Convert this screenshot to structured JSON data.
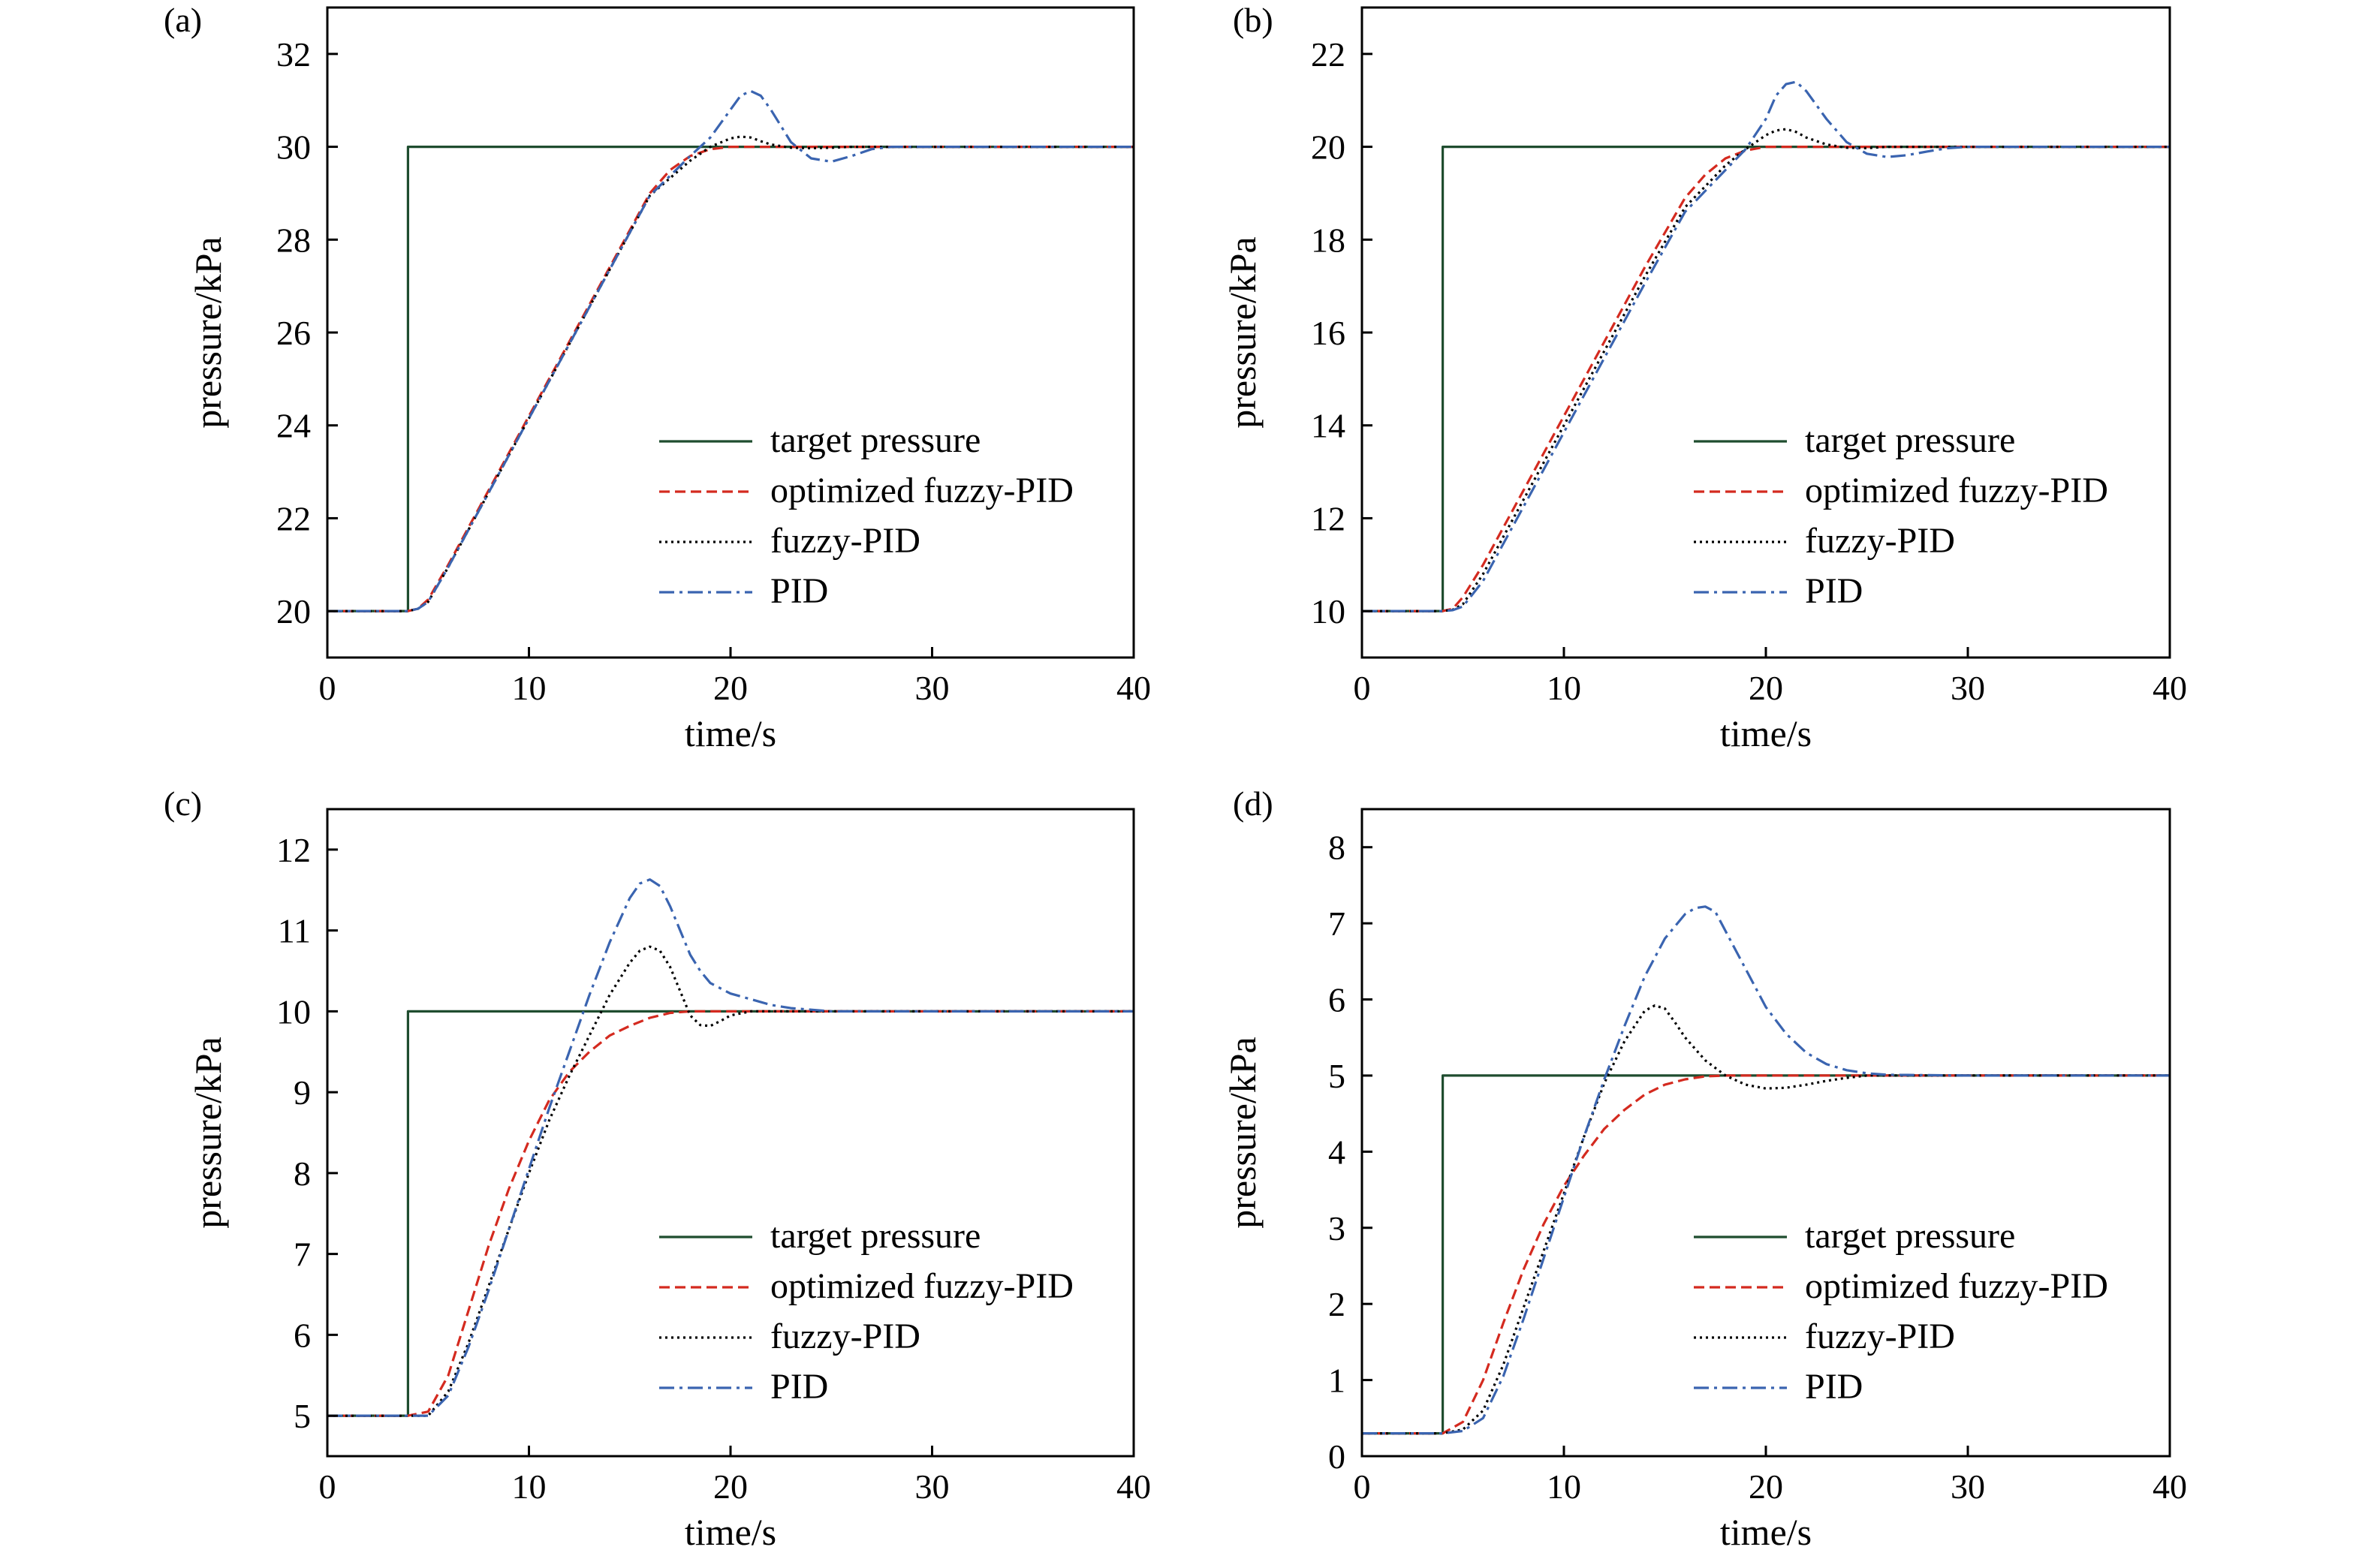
{
  "colors": {
    "target": "#1f4d2f",
    "optimized": "#d42a1f",
    "fuzzy": "#000000",
    "pid": "#3a64b0"
  },
  "legend_order": [
    "target",
    "optimized",
    "fuzzy",
    "pid"
  ],
  "chart_data": [
    {
      "type": "line",
      "panel_label": "(a)",
      "xlabel": "time/s",
      "ylabel": "pressure/kPa",
      "xlim": [
        0,
        40
      ],
      "ylim": [
        19,
        33
      ],
      "xticks": [
        0,
        10,
        20,
        30,
        40
      ],
      "yticks": [
        20,
        22,
        24,
        26,
        28,
        30,
        32
      ],
      "legend_position": "lower-right",
      "series": [
        {
          "key": "target",
          "name": "target pressure",
          "style": "solid",
          "x": [
            0,
            4,
            4,
            40
          ],
          "y": [
            20,
            20,
            30,
            30
          ]
        },
        {
          "key": "optimized",
          "name": "optimized fuzzy-PID",
          "style": "dashed",
          "x": [
            0,
            4,
            4.5,
            5,
            6,
            8,
            10,
            12,
            14,
            16,
            17,
            18,
            19,
            20,
            21,
            22,
            25,
            30,
            40
          ],
          "y": [
            20,
            20,
            20.05,
            20.25,
            21,
            22.6,
            24.2,
            25.8,
            27.4,
            29.0,
            29.5,
            29.8,
            29.95,
            30,
            30,
            30,
            30,
            30,
            30
          ]
        },
        {
          "key": "fuzzy",
          "name": "fuzzy-PID",
          "style": "dotted",
          "x": [
            0,
            4,
            4.5,
            5,
            6,
            8,
            10,
            12,
            14,
            16,
            18,
            19,
            20,
            20.5,
            21,
            21.5,
            22,
            23,
            24,
            25,
            26,
            30,
            40
          ],
          "y": [
            20,
            20,
            20.05,
            20.2,
            20.95,
            22.55,
            24.15,
            25.75,
            27.35,
            28.95,
            29.7,
            30.0,
            30.18,
            30.22,
            30.2,
            30.12,
            30.05,
            29.98,
            29.97,
            29.98,
            30,
            30,
            30
          ]
        },
        {
          "key": "pid",
          "name": "PID",
          "style": "dashdot",
          "x": [
            0,
            4,
            4.5,
            5,
            6,
            8,
            10,
            12,
            14,
            16,
            18,
            19,
            20,
            20.5,
            21,
            21.5,
            22,
            23,
            24,
            25,
            26,
            27,
            28,
            30,
            40
          ],
          "y": [
            20,
            20,
            20.05,
            20.2,
            20.95,
            22.55,
            24.15,
            25.75,
            27.35,
            28.95,
            29.8,
            30.2,
            30.8,
            31.1,
            31.2,
            31.1,
            30.8,
            30.1,
            29.75,
            29.68,
            29.8,
            29.95,
            30,
            30,
            30
          ]
        }
      ]
    },
    {
      "type": "line",
      "panel_label": "(b)",
      "xlabel": "time/s",
      "ylabel": "pressure/kPa",
      "xlim": [
        0,
        40
      ],
      "ylim": [
        9,
        23
      ],
      "xticks": [
        0,
        10,
        20,
        30,
        40
      ],
      "yticks": [
        10,
        12,
        14,
        16,
        18,
        20,
        22
      ],
      "legend_position": "lower-right",
      "series": [
        {
          "key": "target",
          "name": "target pressure",
          "style": "solid",
          "x": [
            0,
            4,
            4,
            40
          ],
          "y": [
            10,
            10,
            20,
            20
          ]
        },
        {
          "key": "optimized",
          "name": "optimized fuzzy-PID",
          "style": "dashed",
          "x": [
            0,
            4,
            4.5,
            5,
            6,
            8,
            10,
            12,
            14,
            16,
            17,
            18,
            19,
            20,
            21,
            22,
            25,
            30,
            40
          ],
          "y": [
            10,
            10,
            10.05,
            10.3,
            11.0,
            12.6,
            14.2,
            15.8,
            17.4,
            18.9,
            19.4,
            19.75,
            19.92,
            20,
            20,
            20,
            20,
            20,
            20
          ]
        },
        {
          "key": "fuzzy",
          "name": "fuzzy-PID",
          "style": "dotted",
          "x": [
            0,
            4,
            4.5,
            5,
            6,
            8,
            10,
            12,
            14,
            16,
            18,
            19,
            20,
            20.5,
            21,
            21.5,
            22,
            23,
            24,
            25,
            26,
            30,
            40
          ],
          "y": [
            10,
            10,
            10.03,
            10.15,
            10.8,
            12.4,
            14.0,
            15.6,
            17.2,
            18.7,
            19.6,
            19.95,
            20.25,
            20.35,
            20.38,
            20.32,
            20.2,
            20.05,
            19.98,
            19.97,
            20,
            20,
            20
          ]
        },
        {
          "key": "pid",
          "name": "PID",
          "style": "dashdot",
          "x": [
            0,
            4,
            4.5,
            5,
            6,
            8,
            10,
            12,
            14,
            16,
            18,
            19,
            20,
            20.5,
            21,
            21.5,
            22,
            23,
            24,
            25,
            26,
            27,
            28,
            29,
            30,
            40
          ],
          "y": [
            10,
            10,
            10.02,
            10.1,
            10.65,
            12.25,
            13.85,
            15.45,
            17.05,
            18.6,
            19.5,
            19.95,
            20.6,
            21.1,
            21.35,
            21.4,
            21.2,
            20.6,
            20.1,
            19.85,
            19.78,
            19.82,
            19.9,
            19.97,
            20,
            20
          ]
        }
      ]
    },
    {
      "type": "line",
      "panel_label": "(c)",
      "xlabel": "time/s",
      "ylabel": "pressure/kPa",
      "xlim": [
        0,
        40
      ],
      "ylim": [
        4.5,
        12.5
      ],
      "xticks": [
        0,
        10,
        20,
        30,
        40
      ],
      "yticks": [
        5,
        6,
        7,
        8,
        9,
        10,
        11,
        12
      ],
      "legend_position": "lower-right",
      "series": [
        {
          "key": "target",
          "name": "target pressure",
          "style": "solid",
          "x": [
            0,
            4,
            4,
            40
          ],
          "y": [
            5,
            5,
            10,
            10
          ]
        },
        {
          "key": "optimized",
          "name": "optimized fuzzy-PID",
          "style": "dashed",
          "x": [
            0,
            4,
            5,
            6,
            7,
            8,
            9,
            10,
            11,
            12,
            13,
            14,
            15,
            16,
            17,
            18,
            20,
            25,
            30,
            40
          ],
          "y": [
            5,
            5,
            5.05,
            5.5,
            6.3,
            7.1,
            7.8,
            8.4,
            8.9,
            9.25,
            9.5,
            9.7,
            9.82,
            9.92,
            9.98,
            10,
            10,
            10,
            10,
            10
          ]
        },
        {
          "key": "fuzzy",
          "name": "fuzzy-PID",
          "style": "dotted",
          "x": [
            0,
            4,
            5,
            6,
            7,
            8,
            9,
            10,
            11,
            12,
            13,
            14,
            15,
            15.5,
            16,
            16.5,
            17,
            17.5,
            18,
            18.5,
            19,
            19.5,
            20,
            21,
            22,
            25,
            30,
            40
          ],
          "y": [
            5,
            5,
            5.0,
            5.3,
            5.9,
            6.6,
            7.3,
            8.0,
            8.65,
            9.2,
            9.7,
            10.2,
            10.6,
            10.75,
            10.8,
            10.75,
            10.55,
            10.25,
            9.95,
            9.83,
            9.82,
            9.88,
            9.95,
            10.0,
            10,
            10,
            10,
            10
          ]
        },
        {
          "key": "pid",
          "name": "PID",
          "style": "dashdot",
          "x": [
            0,
            4,
            5,
            6,
            7,
            8,
            9,
            10,
            11,
            12,
            13,
            14,
            15,
            15.5,
            16,
            16.5,
            17,
            17.5,
            18,
            18.5,
            19,
            20,
            21,
            22,
            23,
            24,
            25,
            30,
            40
          ],
          "y": [
            5,
            5,
            5.0,
            5.25,
            5.85,
            6.55,
            7.3,
            8.05,
            8.8,
            9.5,
            10.2,
            10.85,
            11.4,
            11.58,
            11.63,
            11.55,
            11.3,
            11.0,
            10.7,
            10.5,
            10.35,
            10.22,
            10.15,
            10.08,
            10.04,
            10.02,
            10.0,
            10,
            10
          ]
        }
      ]
    },
    {
      "type": "line",
      "panel_label": "(d)",
      "xlabel": "time/s",
      "ylabel": "pressure/kPa",
      "xlim": [
        0,
        40
      ],
      "ylim": [
        0,
        8.5
      ],
      "xticks": [
        0,
        10,
        20,
        30,
        40
      ],
      "yticks": [
        0,
        1,
        2,
        3,
        4,
        5,
        6,
        7,
        8
      ],
      "legend_position": "lower-right",
      "series": [
        {
          "key": "target",
          "name": "target pressure",
          "style": "solid",
          "x": [
            0,
            4,
            4,
            40
          ],
          "y": [
            0.3,
            0.3,
            5,
            5
          ]
        },
        {
          "key": "optimized",
          "name": "optimized fuzzy-PID",
          "style": "dashed",
          "x": [
            0,
            4,
            5,
            6,
            7,
            8,
            9,
            10,
            11,
            12,
            13,
            14,
            15,
            16,
            17,
            18,
            20,
            25,
            30,
            40
          ],
          "y": [
            0.3,
            0.3,
            0.45,
            1.0,
            1.75,
            2.45,
            3.05,
            3.55,
            3.95,
            4.3,
            4.55,
            4.75,
            4.88,
            4.95,
            4.99,
            5,
            5,
            5,
            5,
            5
          ]
        },
        {
          "key": "fuzzy",
          "name": "fuzzy-PID",
          "style": "dotted",
          "x": [
            0,
            4,
            5,
            6,
            7,
            8,
            9,
            10,
            11,
            12,
            13,
            14,
            14.5,
            15,
            15.5,
            16,
            16.5,
            17,
            18,
            19,
            20,
            21,
            22,
            23,
            24,
            25,
            30,
            40
          ],
          "y": [
            0.3,
            0.3,
            0.35,
            0.6,
            1.2,
            1.95,
            2.7,
            3.45,
            4.2,
            4.9,
            5.45,
            5.85,
            5.92,
            5.88,
            5.7,
            5.5,
            5.35,
            5.2,
            5.0,
            4.88,
            4.83,
            4.84,
            4.88,
            4.93,
            4.97,
            5.0,
            5,
            5
          ]
        },
        {
          "key": "pid",
          "name": "PID",
          "style": "dashdot",
          "x": [
            0,
            4,
            5,
            6,
            7,
            8,
            9,
            10,
            11,
            12,
            13,
            14,
            15,
            16,
            16.5,
            17,
            17.5,
            18,
            19,
            20,
            21,
            22,
            23,
            24,
            25,
            26,
            30,
            40
          ],
          "y": [
            0.3,
            0.3,
            0.33,
            0.5,
            1.05,
            1.8,
            2.6,
            3.4,
            4.2,
            4.95,
            5.65,
            6.3,
            6.8,
            7.12,
            7.2,
            7.22,
            7.15,
            6.9,
            6.4,
            5.9,
            5.55,
            5.3,
            5.15,
            5.07,
            5.03,
            5.01,
            5,
            5
          ]
        }
      ]
    }
  ]
}
